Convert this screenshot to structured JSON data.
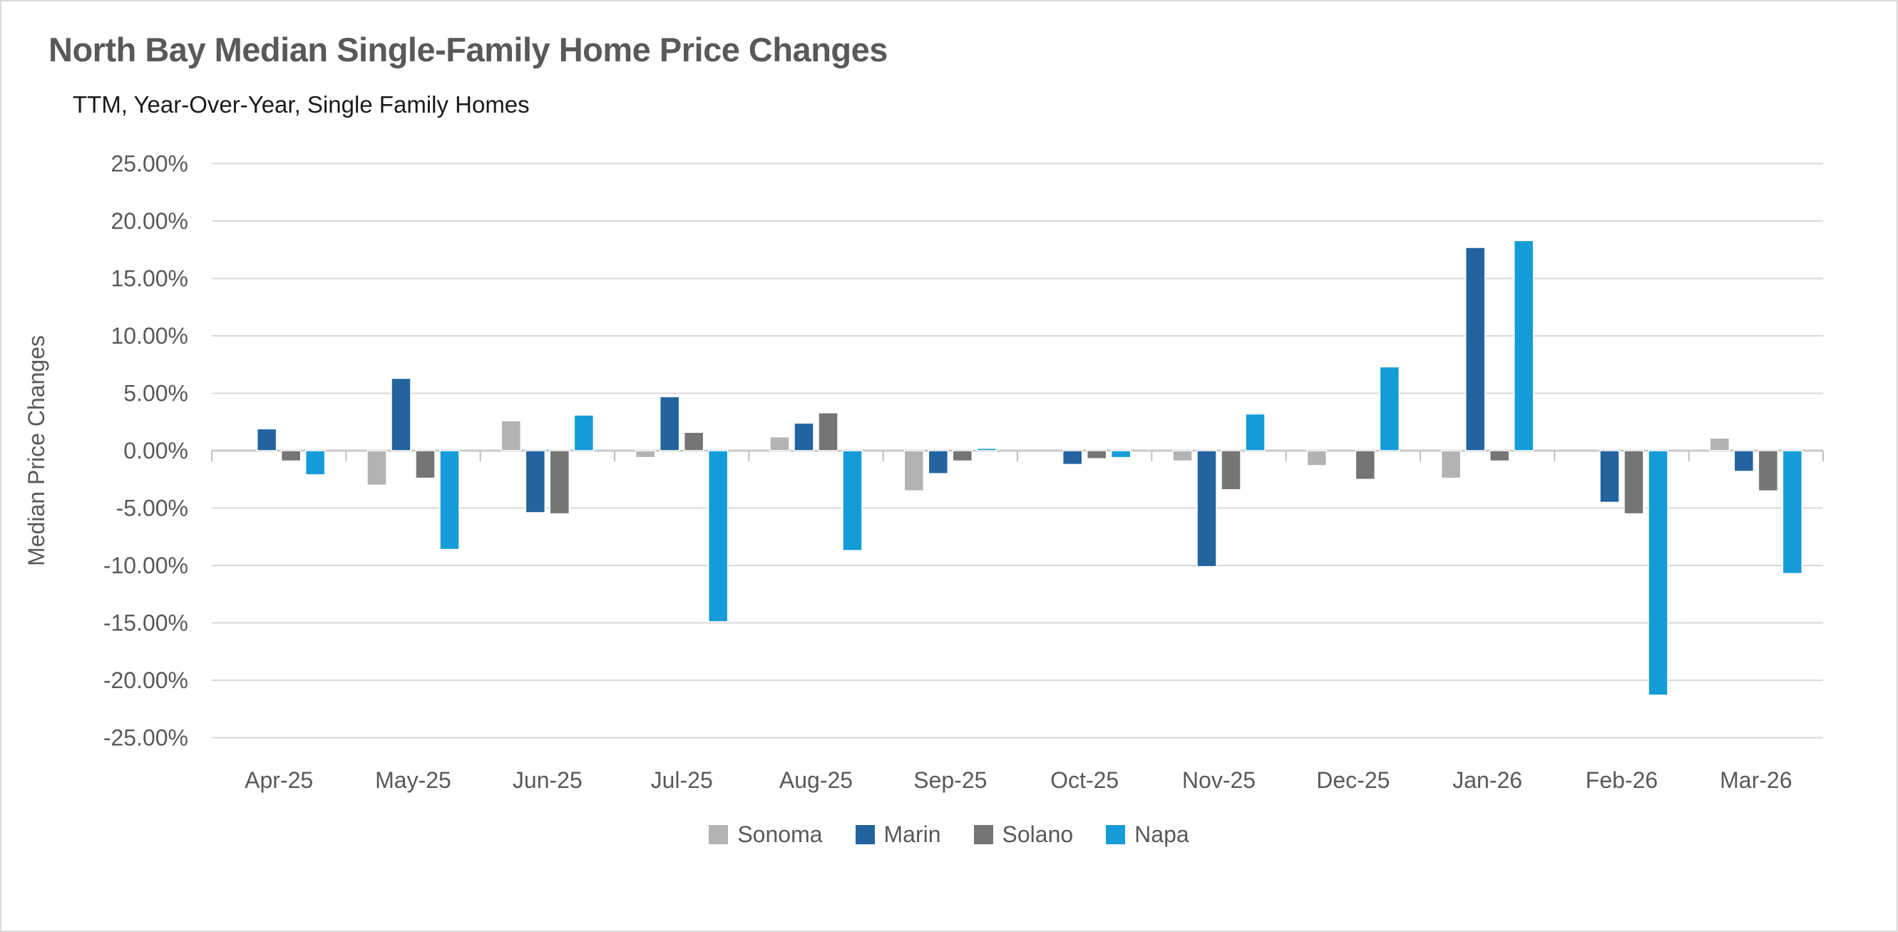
{
  "header": {
    "title": "North Bay Median Single-Family Home Price Changes",
    "subtitle": "TTM, Year-Over-Year, Single Family Homes"
  },
  "chart_data": {
    "type": "bar",
    "title": "North Bay Median Single-Family Home Price Changes",
    "subtitle": "TTM, Year-Over-Year, Single Family Homes",
    "xlabel": "",
    "ylabel": "Median Price Changes",
    "ylim": [
      -25,
      25
    ],
    "ytick_step": 5,
    "ytick_labels": [
      "25.00%",
      "20.00%",
      "15.00%",
      "10.00%",
      "5.00%",
      "0.00%",
      "-5.00%",
      "-10.00%",
      "-15.00%",
      "-20.00%",
      "-25.00%"
    ],
    "grid": true,
    "legend_position": "bottom",
    "value_unit": "percent",
    "categories": [
      "Apr-25",
      "May-25",
      "Jun-25",
      "Jul-25",
      "Aug-25",
      "Sep-25",
      "Oct-25",
      "Nov-25",
      "Dec-25",
      "Jan-26",
      "Feb-26",
      "Mar-26"
    ],
    "series": [
      {
        "name": "Sonoma",
        "color": "#B3B3B3",
        "values": [
          0.0,
          -3.0,
          2.6,
          -0.6,
          1.2,
          -3.5,
          0.0,
          -0.9,
          -1.3,
          -2.4,
          0.0,
          1.1
        ]
      },
      {
        "name": "Marin",
        "color": "#2263A0",
        "values": [
          1.9,
          6.3,
          -5.4,
          4.7,
          2.4,
          -2.0,
          -1.2,
          -10.1,
          0.0,
          17.7,
          -4.5,
          -1.8
        ]
      },
      {
        "name": "Solano",
        "color": "#757575",
        "values": [
          -0.9,
          -2.4,
          -5.5,
          1.6,
          3.3,
          -0.9,
          -0.7,
          -3.4,
          -2.5,
          -0.9,
          -5.5,
          -3.5
        ]
      },
      {
        "name": "Napa",
        "color": "#149CD8",
        "values": [
          -2.1,
          -8.6,
          3.1,
          -14.9,
          -8.7,
          0.2,
          -0.6,
          3.2,
          7.3,
          18.3,
          -21.3,
          -10.7
        ]
      }
    ],
    "colors": {
      "gridline": "#D9D9D9",
      "axis_line": "#C9C9C9",
      "tick_mark": "#BFBFBF",
      "axis_text": "#595959",
      "title_text": "#595959",
      "subtitle_text": "#1A1A1A"
    }
  }
}
